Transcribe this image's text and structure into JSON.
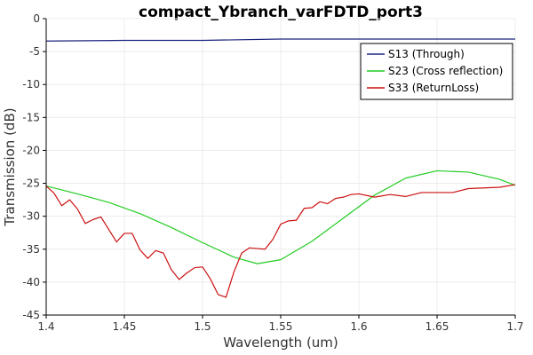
{
  "chart_data": {
    "type": "line",
    "title": "compact_Ybranch_varFDTD_port3",
    "xlabel": "Wavelength (um)",
    "ylabel": "Transmission (dB)",
    "xlim": [
      1.4,
      1.7
    ],
    "ylim": [
      -45,
      0
    ],
    "xticks": [
      1.4,
      1.45,
      1.5,
      1.55,
      1.6,
      1.65,
      1.7
    ],
    "xtick_labels": [
      "1.4",
      "1.45",
      "1.5",
      "1.55",
      "1.6",
      "1.65",
      "1.7"
    ],
    "yticks": [
      0,
      -5,
      -10,
      -15,
      -20,
      -25,
      -30,
      -35,
      -40,
      -45
    ],
    "ytick_labels": [
      "0",
      "-5",
      "-10",
      "-15",
      "-20",
      "-25",
      "-30",
      "-35",
      "-40",
      "-45"
    ],
    "grid": true,
    "legend_position": "top-right",
    "series": [
      {
        "name": "S13 (Through)",
        "color": "#1a237e",
        "x": [
          1.4,
          1.45,
          1.5,
          1.55,
          1.6,
          1.65,
          1.7
        ],
        "y": [
          -3.4,
          -3.3,
          -3.3,
          -3.1,
          -3.1,
          -3.1,
          -3.1
        ]
      },
      {
        "name": "S23 (Cross reflection)",
        "color": "#22cc22",
        "x": [
          1.4,
          1.42,
          1.44,
          1.46,
          1.48,
          1.5,
          1.52,
          1.535,
          1.55,
          1.57,
          1.59,
          1.61,
          1.63,
          1.65,
          1.67,
          1.69,
          1.7
        ],
        "y": [
          -25.4,
          -26.6,
          -27.9,
          -29.6,
          -31.7,
          -34.0,
          -36.2,
          -37.2,
          -36.6,
          -33.8,
          -30.3,
          -26.8,
          -24.2,
          -23.1,
          -23.3,
          -24.4,
          -25.3
        ]
      },
      {
        "name": "S33 (ReturnLoss)",
        "color": "#cc1111",
        "x": [
          1.4,
          1.405,
          1.41,
          1.415,
          1.42,
          1.425,
          1.43,
          1.435,
          1.44,
          1.445,
          1.45,
          1.455,
          1.46,
          1.465,
          1.47,
          1.475,
          1.48,
          1.485,
          1.49,
          1.495,
          1.5,
          1.505,
          1.51,
          1.515,
          1.52,
          1.525,
          1.53,
          1.535,
          1.54,
          1.545,
          1.55,
          1.555,
          1.56,
          1.565,
          1.57,
          1.575,
          1.58,
          1.585,
          1.59,
          1.595,
          1.6,
          1.61,
          1.62,
          1.63,
          1.64,
          1.65,
          1.66,
          1.67,
          1.68,
          1.69,
          1.7
        ],
        "y": [
          -25.4,
          -26.5,
          -28.4,
          -27.5,
          -28.9,
          -31.1,
          -30.5,
          -30.1,
          -32.0,
          -33.9,
          -32.6,
          -32.6,
          -35.1,
          -36.4,
          -35.2,
          -35.6,
          -38.1,
          -39.6,
          -38.6,
          -37.8,
          -37.7,
          -39.5,
          -41.9,
          -42.3,
          -38.5,
          -35.6,
          -34.8,
          -34.9,
          -35.0,
          -33.5,
          -31.2,
          -30.7,
          -30.6,
          -28.8,
          -28.7,
          -27.8,
          -28.1,
          -27.3,
          -27.1,
          -26.7,
          -26.6,
          -27.1,
          -26.7,
          -27.0,
          -26.4,
          -26.4,
          -26.4,
          -25.8,
          -25.7,
          -25.6,
          -25.2
        ]
      }
    ]
  }
}
